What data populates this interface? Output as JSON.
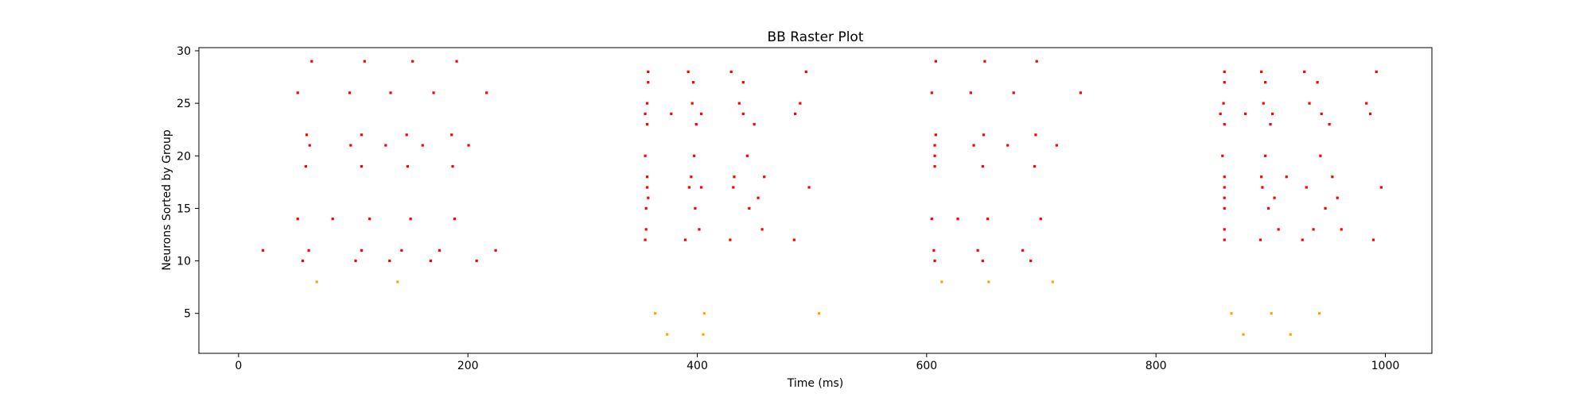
{
  "chart_data": {
    "type": "scatter",
    "title": "BB Raster Plot",
    "xlabel": "Time (ms)",
    "ylabel": "Neurons Sorted by Group",
    "xlim": [
      -34.6,
      1040.6
    ],
    "ylim": [
      1.2,
      30.3
    ],
    "xticks": [
      0,
      200,
      400,
      600,
      800,
      1000
    ],
    "yticks": [
      5,
      10,
      15,
      20,
      25,
      30
    ],
    "grid": false,
    "legend": "none",
    "colors": {
      "excitatory": "#ff0000",
      "inhibitory": "#ffa500"
    },
    "series": [
      {
        "color_key": "excitatory",
        "points": [
          [
            21.3,
            11
          ],
          [
            51.6,
            14
          ],
          [
            51.6,
            26
          ],
          [
            56.0,
            10
          ],
          [
            58.6,
            19
          ],
          [
            59.4,
            22
          ],
          [
            61.2,
            11
          ],
          [
            62.0,
            21
          ],
          [
            63.8,
            29
          ],
          [
            82.1,
            14
          ],
          [
            96.9,
            26
          ],
          [
            97.8,
            21
          ],
          [
            102.1,
            10
          ],
          [
            107.3,
            22
          ],
          [
            107.3,
            19
          ],
          [
            107.3,
            11
          ],
          [
            109.9,
            29
          ],
          [
            114.3,
            14
          ],
          [
            128.3,
            21
          ],
          [
            131.7,
            10
          ],
          [
            132.6,
            26
          ],
          [
            142.2,
            11
          ],
          [
            146.6,
            22
          ],
          [
            147.4,
            19
          ],
          [
            150.0,
            14
          ],
          [
            151.8,
            29
          ],
          [
            160.5,
            21
          ],
          [
            170.1,
            26
          ],
          [
            167.5,
            10
          ],
          [
            175.3,
            11
          ],
          [
            185.8,
            22
          ],
          [
            186.7,
            19
          ],
          [
            188.4,
            14
          ],
          [
            190.2,
            29
          ],
          [
            200.6,
            21
          ],
          [
            207.6,
            10
          ],
          [
            216.3,
            26
          ],
          [
            224.2,
            11
          ],
          [
            354.6,
            12
          ],
          [
            354.6,
            20
          ],
          [
            354.6,
            24
          ],
          [
            355.4,
            13
          ],
          [
            355.4,
            15
          ],
          [
            356.3,
            17
          ],
          [
            356.3,
            18
          ],
          [
            356.3,
            23
          ],
          [
            356.3,
            25
          ],
          [
            357.2,
            16
          ],
          [
            357.2,
            27
          ],
          [
            357.2,
            28
          ],
          [
            377.3,
            24
          ],
          [
            389.5,
            12
          ],
          [
            392.1,
            28
          ],
          [
            393.0,
            17
          ],
          [
            394.7,
            18
          ],
          [
            395.6,
            25
          ],
          [
            396.5,
            27
          ],
          [
            397.3,
            20
          ],
          [
            398.2,
            15
          ],
          [
            399.1,
            23
          ],
          [
            401.7,
            13
          ],
          [
            403.5,
            24
          ],
          [
            403.5,
            17
          ],
          [
            428.7,
            12
          ],
          [
            429.6,
            28
          ],
          [
            431.4,
            17
          ],
          [
            432.2,
            18
          ],
          [
            436.6,
            25
          ],
          [
            440.1,
            24
          ],
          [
            440.1,
            27
          ],
          [
            443.6,
            20
          ],
          [
            445.3,
            15
          ],
          [
            449.7,
            23
          ],
          [
            453.1,
            16
          ],
          [
            456.6,
            13
          ],
          [
            458.4,
            18
          ],
          [
            484.5,
            12
          ],
          [
            485.4,
            24
          ],
          [
            489.7,
            25
          ],
          [
            494.9,
            28
          ],
          [
            497.5,
            17
          ],
          [
            604.5,
            14
          ],
          [
            604.5,
            26
          ],
          [
            606.3,
            11
          ],
          [
            607.1,
            10
          ],
          [
            607.1,
            19
          ],
          [
            607.1,
            20
          ],
          [
            607.1,
            21
          ],
          [
            608.0,
            22
          ],
          [
            608.0,
            29
          ],
          [
            627.2,
            14
          ],
          [
            638.5,
            26
          ],
          [
            641.1,
            21
          ],
          [
            644.6,
            11
          ],
          [
            648.9,
            19
          ],
          [
            648.9,
            10
          ],
          [
            649.8,
            22
          ],
          [
            650.7,
            29
          ],
          [
            653.3,
            14
          ],
          [
            670.7,
            21
          ],
          [
            675.9,
            26
          ],
          [
            683.8,
            11
          ],
          [
            690.8,
            10
          ],
          [
            694.2,
            19
          ],
          [
            695.1,
            22
          ],
          [
            696.0,
            29
          ],
          [
            699.5,
            14
          ],
          [
            713.4,
            21
          ],
          [
            734.3,
            26
          ],
          [
            856.2,
            24
          ],
          [
            858.0,
            20
          ],
          [
            858.9,
            25
          ],
          [
            859.7,
            12
          ],
          [
            859.7,
            13
          ],
          [
            859.7,
            15
          ],
          [
            859.7,
            16
          ],
          [
            859.7,
            17
          ],
          [
            859.7,
            18
          ],
          [
            859.7,
            23
          ],
          [
            859.7,
            27
          ],
          [
            859.7,
            28
          ],
          [
            878.0,
            24
          ],
          [
            891.1,
            12
          ],
          [
            891.9,
            18
          ],
          [
            891.9,
            28
          ],
          [
            892.8,
            17
          ],
          [
            893.7,
            25
          ],
          [
            895.4,
            27
          ],
          [
            895.4,
            20
          ],
          [
            898.1,
            15
          ],
          [
            899.8,
            23
          ],
          [
            901.6,
            24
          ],
          [
            903.3,
            16
          ],
          [
            906.8,
            13
          ],
          [
            913.8,
            18
          ],
          [
            927.7,
            12
          ],
          [
            929.4,
            28
          ],
          [
            931.2,
            17
          ],
          [
            933.8,
            25
          ],
          [
            937.3,
            13
          ],
          [
            940.8,
            27
          ],
          [
            943.4,
            20
          ],
          [
            944.3,
            24
          ],
          [
            947.7,
            15
          ],
          [
            951.2,
            23
          ],
          [
            953.8,
            18
          ],
          [
            958.2,
            16
          ],
          [
            961.7,
            13
          ],
          [
            983.5,
            25
          ],
          [
            986.9,
            24
          ],
          [
            989.6,
            12
          ],
          [
            992.2,
            28
          ],
          [
            996.5,
            17
          ]
        ]
      },
      {
        "color_key": "inhibitory",
        "points": [
          [
            68.2,
            8
          ],
          [
            138.7,
            8
          ],
          [
            363.3,
            5
          ],
          [
            373.8,
            3
          ],
          [
            405.2,
            3
          ],
          [
            406.1,
            5
          ],
          [
            506.2,
            5
          ],
          [
            613.2,
            8
          ],
          [
            654.1,
            8
          ],
          [
            709.9,
            8
          ],
          [
            865.8,
            5
          ],
          [
            876.2,
            3
          ],
          [
            900.6,
            5
          ],
          [
            917.3,
            3
          ],
          [
            942.5,
            5
          ]
        ]
      }
    ]
  }
}
